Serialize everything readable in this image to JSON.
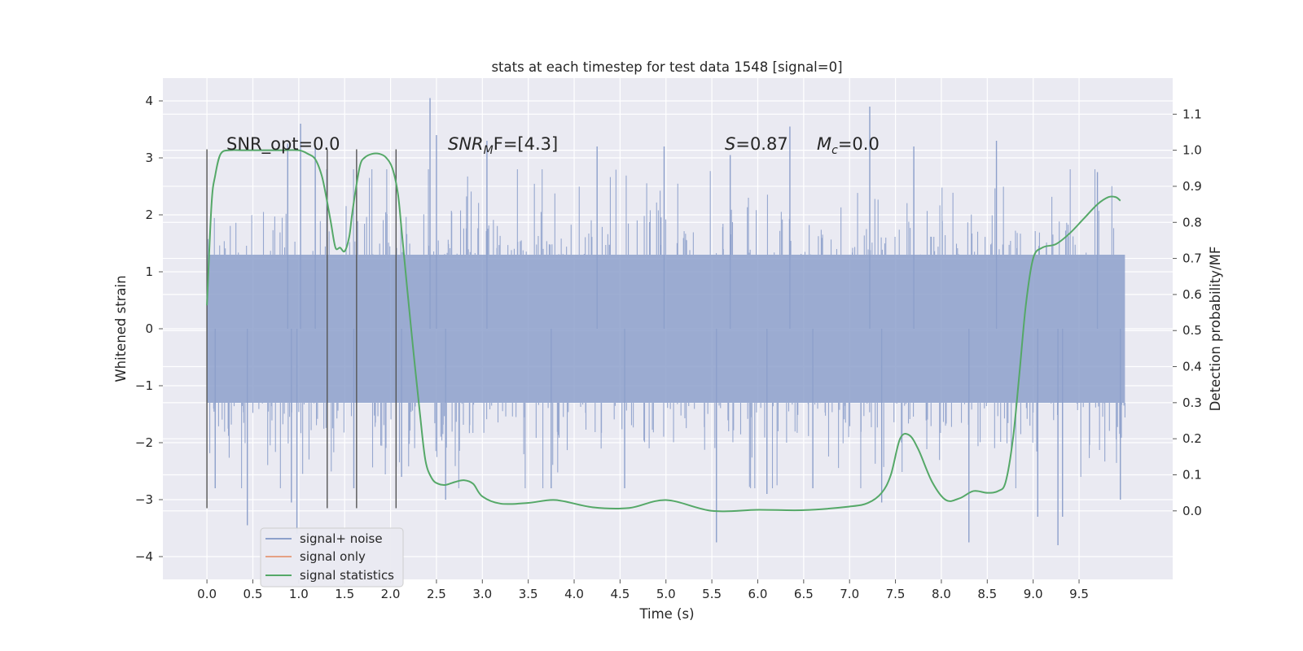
{
  "chart_data": {
    "type": "line",
    "title": "stats at each timestep for test data 1548 [signal=0]",
    "xlabel": "Time (s)",
    "ylabel": "Whitened strain",
    "y2label": "Detection probability/MF",
    "xlim": [
      -0.48,
      10.52
    ],
    "ylim": [
      -4.4,
      4.4
    ],
    "y2lim": [
      -0.19,
      1.2
    ],
    "grid": true,
    "x_ticks": [
      "0.0",
      "0.5",
      "1.0",
      "1.5",
      "2.0",
      "2.5",
      "3.0",
      "3.5",
      "4.0",
      "4.5",
      "5.0",
      "5.5",
      "6.0",
      "6.5",
      "7.0",
      "7.5",
      "8.0",
      "8.5",
      "9.0",
      "9.5"
    ],
    "y_ticks": [
      "4",
      "3",
      "2",
      "1",
      "0",
      "−1",
      "−2",
      "−3",
      "−4"
    ],
    "y_tick_values": [
      4,
      3,
      2,
      1,
      0,
      -1,
      -2,
      -3,
      -4
    ],
    "y2_ticks": [
      "1.1",
      "1.0",
      "0.9",
      "0.8",
      "0.7",
      "0.6",
      "0.5",
      "0.4",
      "0.3",
      "0.2",
      "0.1",
      "0.0"
    ],
    "y2_tick_values": [
      1.1,
      1.0,
      0.9,
      0.8,
      0.7,
      0.6,
      0.5,
      0.4,
      0.3,
      0.2,
      0.1,
      0.0
    ],
    "annotations": {
      "snr_opt": "SNR_opt=0.0",
      "snr_mf_main": "SNR",
      "snr_mf_sub": "M",
      "snr_mf_tail": "F=[4.3]",
      "s_main": "S",
      "s_value": "=0.87",
      "mc_main": "M",
      "mc_sub": "c",
      "mc_value": "=0.0"
    },
    "vertical_markers": [
      0.0,
      1.31,
      1.63,
      2.06
    ],
    "marker_range": [
      -3.15,
      3.15
    ],
    "noise_time_range": [
      0.0,
      10.0
    ],
    "noise_envelope_amplitude": 1.3,
    "noise_spikes": [
      {
        "x": 0.09,
        "y": -2.8
      },
      {
        "x": 0.44,
        "y": -3.45
      },
      {
        "x": 0.88,
        "y": 3.25
      },
      {
        "x": 0.92,
        "y": -3.05
      },
      {
        "x": 0.98,
        "y": -3.6
      },
      {
        "x": 1.02,
        "y": 3.6
      },
      {
        "x": 1.18,
        "y": 3.2
      },
      {
        "x": 1.6,
        "y": -2.8
      },
      {
        "x": 2.12,
        "y": -2.6
      },
      {
        "x": 2.43,
        "y": 4.05
      },
      {
        "x": 2.5,
        "y": 3.4
      },
      {
        "x": 2.6,
        "y": -3.0
      },
      {
        "x": 3.05,
        "y": 3.3
      },
      {
        "x": 3.75,
        "y": -2.8
      },
      {
        "x": 4.25,
        "y": 3.2
      },
      {
        "x": 4.55,
        "y": -2.8
      },
      {
        "x": 4.98,
        "y": 3.2
      },
      {
        "x": 5.55,
        "y": -3.75
      },
      {
        "x": 5.7,
        "y": 3.05
      },
      {
        "x": 6.1,
        "y": -2.9
      },
      {
        "x": 6.35,
        "y": 3.55
      },
      {
        "x": 6.6,
        "y": -2.8
      },
      {
        "x": 7.22,
        "y": 3.9
      },
      {
        "x": 7.35,
        "y": -3.05
      },
      {
        "x": 7.7,
        "y": 3.2
      },
      {
        "x": 8.3,
        "y": -3.75
      },
      {
        "x": 8.6,
        "y": 3.3
      },
      {
        "x": 9.05,
        "y": -3.3
      },
      {
        "x": 9.27,
        "y": -3.8
      },
      {
        "x": 9.32,
        "y": -3.3
      },
      {
        "x": 9.7,
        "y": 2.75
      },
      {
        "x": 9.95,
        "y": -3.0
      }
    ],
    "series": [
      {
        "name": "signal+ noise",
        "color": "#8da0cb",
        "values": []
      },
      {
        "name": "signal only",
        "color": "#e5a184",
        "values": []
      },
      {
        "name": "signal statistics",
        "color": "#55a868",
        "axis": "right",
        "x": [
          0.0,
          0.05,
          0.09,
          0.15,
          0.25,
          0.4,
          0.6,
          0.8,
          1.0,
          1.1,
          1.18,
          1.25,
          1.3,
          1.35,
          1.4,
          1.45,
          1.5,
          1.55,
          1.58,
          1.62,
          1.67,
          1.72,
          1.8,
          1.88,
          1.95,
          2.02,
          2.08,
          2.12,
          2.18,
          2.25,
          2.32,
          2.38,
          2.45,
          2.52,
          2.6,
          2.7,
          2.8,
          2.9,
          3.0,
          3.2,
          3.5,
          3.8,
          4.2,
          4.6,
          5.0,
          5.5,
          6.0,
          6.5,
          7.0,
          7.2,
          7.35,
          7.45,
          7.55,
          7.65,
          7.75,
          7.9,
          8.05,
          8.2,
          8.35,
          8.5,
          8.62,
          8.7,
          8.78,
          8.85,
          8.92,
          9.0,
          9.1,
          9.25,
          9.4,
          9.55,
          9.7,
          9.82,
          9.9,
          9.95
        ],
        "values": [
          0.57,
          0.85,
          0.93,
          0.99,
          1.0,
          1.0,
          1.0,
          1.0,
          1.0,
          0.99,
          0.975,
          0.93,
          0.87,
          0.8,
          0.73,
          0.73,
          0.72,
          0.76,
          0.82,
          0.89,
          0.96,
          0.98,
          0.99,
          0.99,
          0.98,
          0.95,
          0.88,
          0.78,
          0.62,
          0.44,
          0.27,
          0.14,
          0.09,
          0.075,
          0.072,
          0.08,
          0.085,
          0.075,
          0.04,
          0.02,
          0.022,
          0.03,
          0.01,
          0.008,
          0.03,
          0.0,
          0.003,
          0.002,
          0.012,
          0.022,
          0.05,
          0.1,
          0.2,
          0.21,
          0.17,
          0.08,
          0.03,
          0.035,
          0.055,
          0.05,
          0.055,
          0.08,
          0.2,
          0.38,
          0.57,
          0.7,
          0.73,
          0.74,
          0.77,
          0.81,
          0.85,
          0.87,
          0.87,
          0.86
        ]
      }
    ]
  }
}
